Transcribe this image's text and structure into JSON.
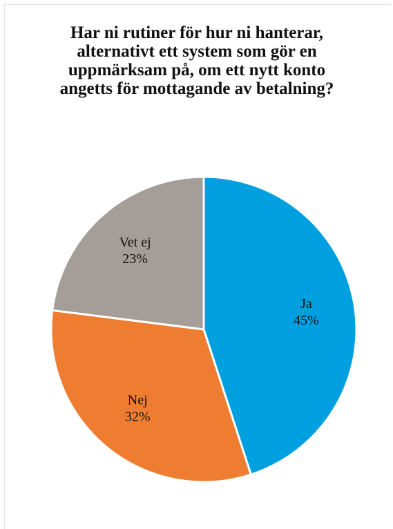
{
  "chart_data": {
    "type": "pie",
    "title": "Har ni rutiner för hur ni hanterar, alternativt ett system som gör en uppmärksam på, om ett nytt konto angetts för mottagande av betalning?",
    "categories": [
      "Ja",
      "Nej",
      "Vet ej"
    ],
    "values": [
      45,
      32,
      23
    ],
    "value_labels": [
      "45%",
      "32%",
      "23%"
    ],
    "colors": [
      "#00a0e0",
      "#ee7d31",
      "#a59e98"
    ]
  }
}
